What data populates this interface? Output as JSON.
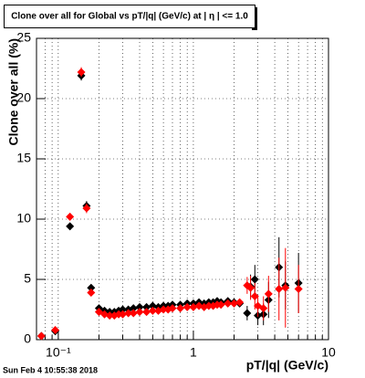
{
  "chart_data": {
    "type": "scatter",
    "title": "Clone  over all for Global vs pT/|q| (GeV/c) at |  η | <= 1.0",
    "x_label": "pT/|q| (GeV/c)",
    "y_label": "Clone  over all (%)",
    "footer": "Sun Feb  4 10:55:38 2018",
    "log_x": true,
    "grid": true,
    "xlim": [
      0.069,
      10
    ],
    "ylim": [
      0,
      25
    ],
    "xticks": [
      {
        "value": 0.1,
        "label": "10⁻¹"
      },
      1,
      10
    ],
    "xminor_ticks": [
      0.08,
      0.09,
      0.2,
      0.3,
      0.4,
      0.5,
      0.6,
      0.7,
      0.8,
      0.9,
      2,
      3,
      4,
      5,
      6,
      7,
      8,
      9
    ],
    "yticks": [
      0,
      5,
      10,
      15,
      20,
      25
    ],
    "x": [
      0.075,
      0.095,
      0.122,
      0.148,
      0.162,
      0.175,
      0.2,
      0.22,
      0.24,
      0.26,
      0.28,
      0.3,
      0.33,
      0.36,
      0.4,
      0.45,
      0.5,
      0.55,
      0.6,
      0.65,
      0.7,
      0.8,
      0.9,
      1.0,
      1.1,
      1.2,
      1.3,
      1.4,
      1.5,
      1.6,
      1.8,
      2.0,
      2.2,
      2.5,
      2.65,
      2.85,
      3.0,
      3.3,
      3.6,
      4.3,
      4.8,
      6.0
    ],
    "series": [
      {
        "color": "#000000",
        "values": [
          0.3,
          0.7,
          9.4,
          21.9,
          11.1,
          4.3,
          2.6,
          2.4,
          2.3,
          2.3,
          2.4,
          2.5,
          2.5,
          2.6,
          2.7,
          2.7,
          2.8,
          2.7,
          2.8,
          2.8,
          2.9,
          2.9,
          3.0,
          3.0,
          3.1,
          3.0,
          3.1,
          3.1,
          3.2,
          3.1,
          3.2,
          3.1,
          3.0,
          2.2,
          4.4,
          5.0,
          2.0,
          2.1,
          3.3,
          6.0,
          4.5,
          4.7
        ],
        "errors": [
          0.1,
          0.1,
          0.3,
          0.4,
          0.4,
          0.3,
          0.2,
          0.2,
          0.2,
          0.2,
          0.2,
          0.2,
          0.2,
          0.2,
          0.2,
          0.2,
          0.2,
          0.2,
          0.2,
          0.2,
          0.2,
          0.2,
          0.2,
          0.2,
          0.2,
          0.2,
          0.2,
          0.2,
          0.2,
          0.2,
          0.2,
          0.2,
          0.2,
          0.6,
          1.0,
          1.2,
          0.8,
          0.9,
          1.5,
          2.5,
          2.0,
          2.5
        ]
      },
      {
        "color": "#ff0000",
        "values": [
          0.3,
          0.8,
          10.2,
          22.2,
          10.9,
          3.9,
          2.3,
          2.1,
          2.0,
          2.0,
          2.1,
          2.1,
          2.2,
          2.2,
          2.3,
          2.3,
          2.4,
          2.4,
          2.5,
          2.5,
          2.6,
          2.6,
          2.7,
          2.7,
          2.8,
          2.7,
          2.8,
          2.8,
          2.9,
          2.9,
          3.0,
          3.0,
          3.1,
          4.5,
          4.3,
          3.6,
          2.8,
          2.6,
          3.8,
          4.2,
          4.3,
          4.2
        ],
        "errors": [
          0.1,
          0.1,
          0.3,
          0.4,
          0.4,
          0.3,
          0.2,
          0.2,
          0.2,
          0.2,
          0.2,
          0.2,
          0.2,
          0.2,
          0.2,
          0.2,
          0.2,
          0.2,
          0.2,
          0.2,
          0.2,
          0.2,
          0.2,
          0.2,
          0.2,
          0.2,
          0.2,
          0.2,
          0.2,
          0.2,
          0.2,
          0.2,
          0.2,
          0.7,
          1.0,
          1.1,
          0.9,
          1.0,
          1.5,
          2.6,
          3.3,
          2.0
        ]
      }
    ]
  }
}
